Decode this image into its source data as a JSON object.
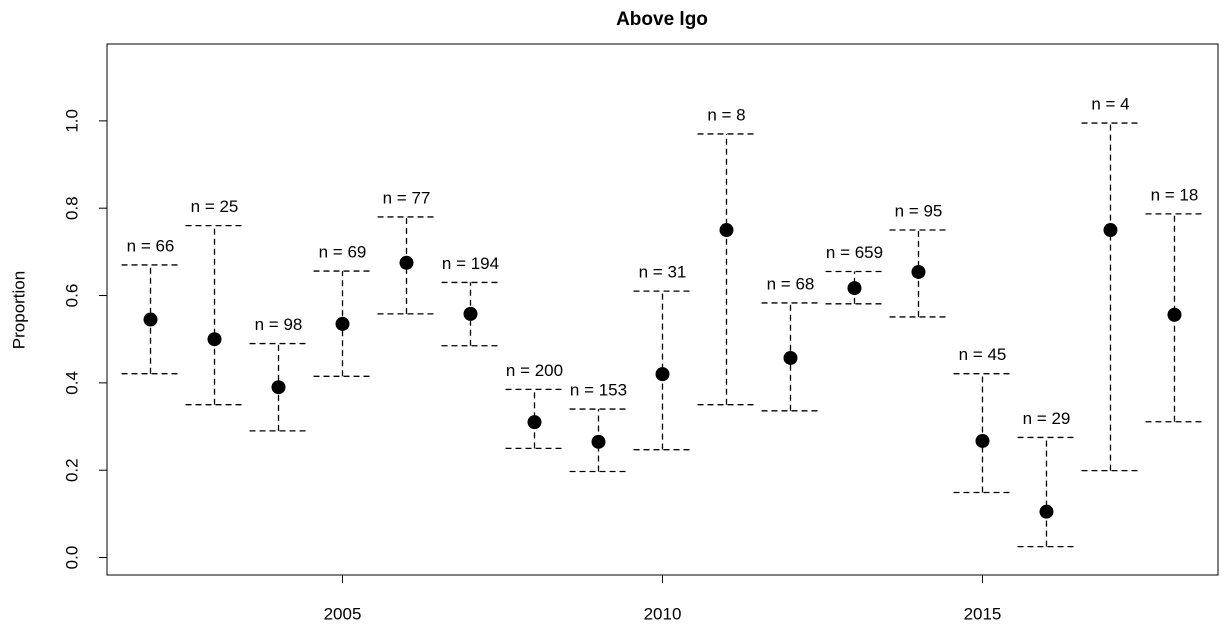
{
  "chart_data": {
    "type": "errorbar",
    "title": "Above lgo",
    "y_label": "Proportion",
    "x": [
      2002,
      2003,
      2004,
      2005,
      2006,
      2007,
      2008,
      2009,
      2010,
      2011,
      2012,
      2013,
      2014,
      2015,
      2016,
      2017,
      2018
    ],
    "values": [
      0.545,
      0.5,
      0.39,
      0.535,
      0.675,
      0.558,
      0.31,
      0.265,
      0.42,
      0.75,
      0.457,
      0.617,
      0.654,
      0.267,
      0.105,
      0.75,
      0.556
    ],
    "lower": [
      0.421,
      0.35,
      0.29,
      0.415,
      0.558,
      0.485,
      0.25,
      0.197,
      0.247,
      0.35,
      0.336,
      0.581,
      0.551,
      0.149,
      0.025,
      0.199,
      0.311
    ],
    "upper": [
      0.67,
      0.76,
      0.49,
      0.656,
      0.78,
      0.63,
      0.385,
      0.34,
      0.61,
      0.97,
      0.583,
      0.655,
      0.75,
      0.421,
      0.275,
      0.995,
      0.787
    ],
    "labels": [
      "n = 66",
      "n = 25",
      "n = 98",
      "n = 69",
      "n = 77",
      "n = 194",
      "n = 200",
      "n = 153",
      "n = 31",
      "n = 8",
      "n = 68",
      "n = 659",
      "n = 95",
      "n = 45",
      "n = 29",
      "n = 4",
      "n = 18"
    ],
    "color": "#000000",
    "xlim": [
      2001.32,
      2018.68
    ],
    "xticks": [
      2005,
      2010,
      2015
    ],
    "ylim": [
      -0.04,
      1.176
    ],
    "yticks": [
      {
        "value": 0,
        "label": "0.0"
      },
      {
        "value": 0.2,
        "label": "0.2"
      },
      {
        "value": 0.4,
        "label": "0.4"
      },
      {
        "value": 0.6,
        "label": "0.6"
      },
      {
        "value": 0.8,
        "label": "0.8"
      },
      {
        "value": 1,
        "label": "1.0"
      }
    ]
  }
}
